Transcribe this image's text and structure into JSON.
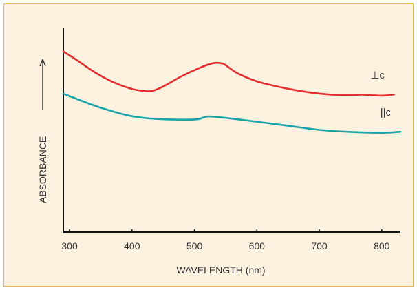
{
  "chart_data": {
    "type": "line",
    "xlabel": "WAVELENGTH (nm)",
    "ylabel": "ABSORBANCE",
    "xlim": [
      290,
      830
    ],
    "x_ticks": [
      300,
      400,
      500,
      600,
      700,
      800
    ],
    "grid": false,
    "y_tick_labels": false,
    "series": [
      {
        "name": "⊥c",
        "color": "#e52d2d",
        "x": [
          290,
          310,
          340,
          370,
          400,
          420,
          432,
          450,
          480,
          510,
          530,
          545,
          555,
          570,
          600,
          640,
          680,
          720,
          760,
          770,
          800,
          820
        ],
        "y": [
          0.883,
          0.844,
          0.782,
          0.733,
          0.7,
          0.69,
          0.69,
          0.712,
          0.763,
          0.805,
          0.826,
          0.824,
          0.805,
          0.775,
          0.737,
          0.707,
          0.685,
          0.672,
          0.671,
          0.672,
          0.667,
          0.673
        ]
      },
      {
        "name": "||c",
        "color": "#18a4a8",
        "x": [
          290,
          320,
          350,
          390,
          420,
          450,
          480,
          505,
          520,
          535,
          560,
          600,
          650,
          700,
          750,
          800,
          830
        ],
        "y": [
          0.677,
          0.641,
          0.608,
          0.573,
          0.558,
          0.552,
          0.55,
          0.552,
          0.565,
          0.563,
          0.555,
          0.54,
          0.52,
          0.5,
          0.49,
          0.486,
          0.491
        ]
      }
    ]
  }
}
